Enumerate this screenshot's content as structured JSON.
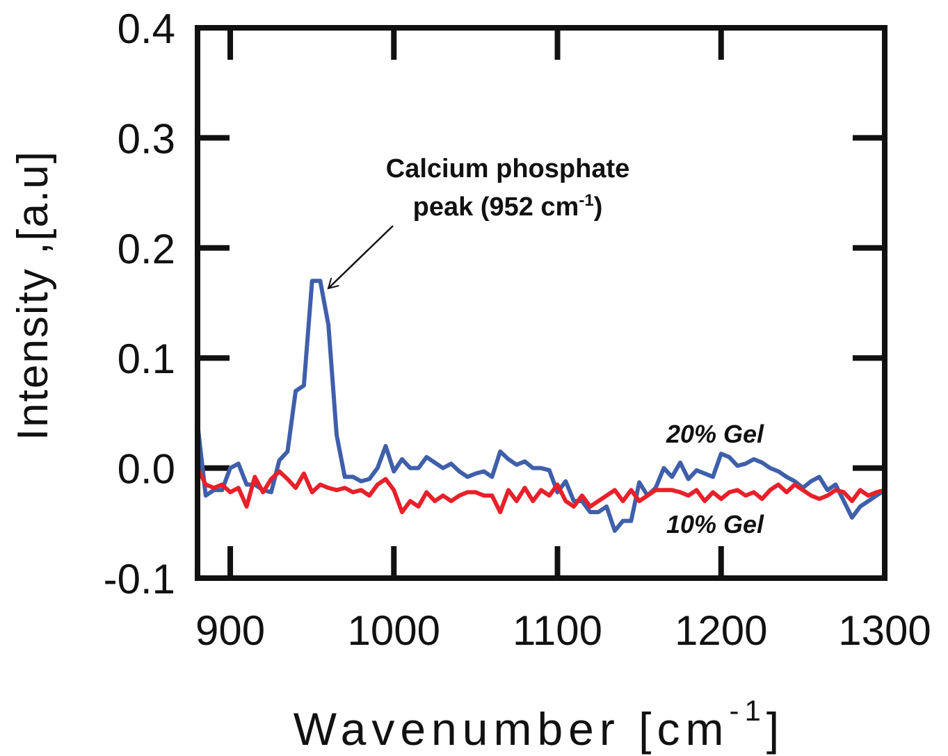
{
  "chart_data": {
    "type": "line",
    "ylabel": "Intensity ,[a.u]",
    "xlabel": "Wavenumber [cm",
    "xlabel_sup": "-1",
    "xlabel_end": "]",
    "annotation": {
      "line1": "Calcium phosphate",
      "line2": "peak (952 cm",
      "sup": "-1",
      "end": ")"
    },
    "xlim": [
      880,
      1300
    ],
    "xticks": [
      900,
      1000,
      1100,
      1200,
      1300
    ],
    "ylim": [
      -0.1,
      0.4
    ],
    "yticks": [
      -0.1,
      {
        "value": 0,
        "label": "0.0"
      },
      0.1,
      0.2,
      0.3,
      0.4
    ],
    "x": [
      880,
      885,
      890,
      895,
      900,
      905,
      910,
      915,
      920,
      925,
      930,
      935,
      940,
      945,
      950,
      955,
      960,
      965,
      970,
      975,
      980,
      985,
      990,
      995,
      1000,
      1005,
      1010,
      1015,
      1020,
      1025,
      1030,
      1035,
      1040,
      1045,
      1050,
      1055,
      1060,
      1065,
      1070,
      1075,
      1080,
      1085,
      1090,
      1095,
      1100,
      1105,
      1110,
      1115,
      1120,
      1125,
      1130,
      1135,
      1140,
      1145,
      1150,
      1155,
      1160,
      1165,
      1170,
      1175,
      1180,
      1185,
      1190,
      1195,
      1200,
      1205,
      1210,
      1215,
      1220,
      1225,
      1230,
      1235,
      1240,
      1245,
      1250,
      1255,
      1260,
      1265,
      1270,
      1275,
      1280,
      1285,
      1290,
      1295,
      1300
    ],
    "series": [
      {
        "name": "20% Gel",
        "color": "#3f5fab",
        "values": [
          0.04,
          -0.025,
          -0.02,
          -0.02,
          0.0,
          0.004,
          -0.015,
          -0.015,
          -0.02,
          -0.022,
          0.007,
          0.015,
          0.07,
          0.075,
          0.17,
          0.17,
          0.13,
          0.03,
          -0.008,
          -0.008,
          -0.012,
          -0.01,
          0.0,
          0.02,
          -0.003,
          0.008,
          0.0,
          0.0,
          0.01,
          0.005,
          0.0,
          0.004,
          -0.003,
          -0.008,
          -0.005,
          -0.003,
          -0.008,
          0.015,
          0.008,
          0.003,
          0.006,
          0.0,
          0.0,
          -0.002,
          -0.022,
          -0.012,
          -0.03,
          -0.03,
          -0.04,
          -0.04,
          -0.035,
          -0.057,
          -0.048,
          -0.048,
          -0.013,
          -0.025,
          -0.018,
          0.0,
          -0.008,
          0.005,
          -0.01,
          -0.002,
          -0.005,
          -0.008,
          0.013,
          0.01,
          0.002,
          0.004,
          0.008,
          0.005,
          0.0,
          -0.003,
          -0.008,
          -0.012,
          -0.018,
          -0.012,
          -0.008,
          -0.02,
          -0.015,
          -0.03,
          -0.045,
          -0.035,
          -0.03,
          -0.025,
          -0.02
        ]
      },
      {
        "name": "10% Gel",
        "color": "#e8202a",
        "values": [
          0.0,
          -0.015,
          -0.018,
          -0.015,
          -0.022,
          -0.018,
          -0.035,
          -0.008,
          -0.022,
          -0.01,
          -0.003,
          -0.01,
          -0.018,
          -0.005,
          -0.022,
          -0.015,
          -0.018,
          -0.02,
          -0.018,
          -0.022,
          -0.02,
          -0.025,
          -0.015,
          -0.01,
          -0.02,
          -0.04,
          -0.03,
          -0.035,
          -0.022,
          -0.03,
          -0.025,
          -0.03,
          -0.025,
          -0.022,
          -0.022,
          -0.025,
          -0.025,
          -0.04,
          -0.02,
          -0.03,
          -0.018,
          -0.03,
          -0.02,
          -0.025,
          -0.015,
          -0.03,
          -0.035,
          -0.025,
          -0.035,
          -0.03,
          -0.025,
          -0.02,
          -0.03,
          -0.02,
          -0.03,
          -0.025,
          -0.02,
          -0.02,
          -0.02,
          -0.022,
          -0.025,
          -0.02,
          -0.03,
          -0.022,
          -0.028,
          -0.022,
          -0.02,
          -0.025,
          -0.022,
          -0.028,
          -0.02,
          -0.015,
          -0.022,
          -0.015,
          -0.02,
          -0.025,
          -0.028,
          -0.025,
          -0.02,
          -0.022,
          -0.03,
          -0.02,
          -0.025,
          -0.022,
          -0.02
        ]
      }
    ]
  }
}
